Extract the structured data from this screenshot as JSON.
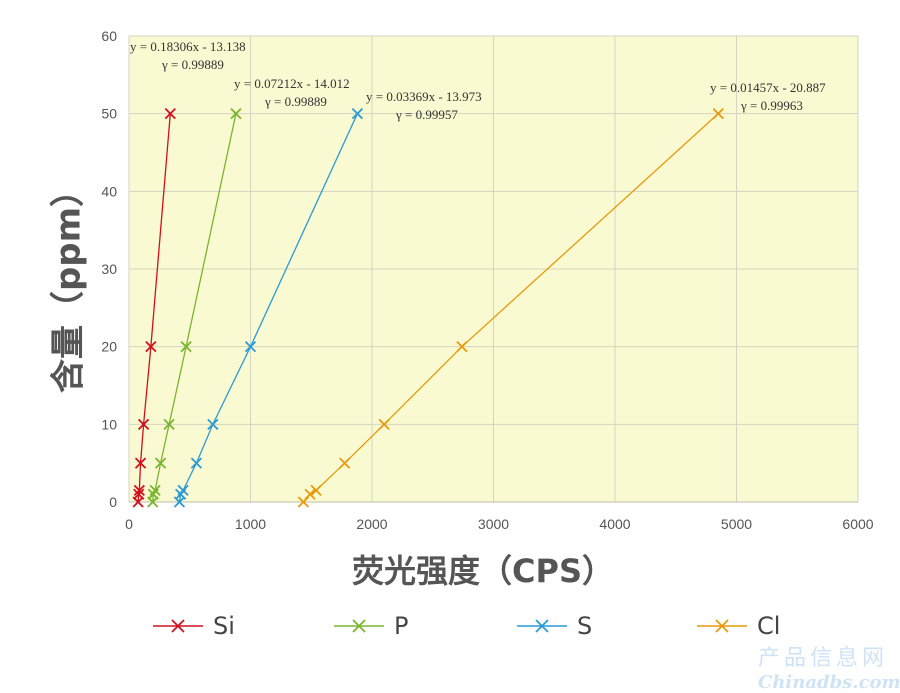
{
  "chart_data": {
    "type": "scatter",
    "xlabel": "荧光强度（CPS）",
    "ylabel": "含量（ppm）",
    "xlim": [
      0,
      6000
    ],
    "ylim": [
      0,
      60
    ],
    "xticks": [
      "0",
      "1000",
      "2000",
      "3000",
      "4000",
      "5000",
      "6000"
    ],
    "yticks": [
      "0",
      "10",
      "20",
      "30",
      "40",
      "50",
      "60"
    ],
    "grid": true,
    "legend_position": "bottom",
    "series": [
      {
        "name": "Si",
        "color": "#d0101e",
        "points": [
          [
            75,
            0
          ],
          [
            80,
            1
          ],
          [
            85,
            1.5
          ],
          [
            95,
            5
          ],
          [
            120,
            10
          ],
          [
            180,
            20
          ],
          [
            340,
            50
          ]
        ],
        "equation": "y = 0.18306x - 13.138",
        "r": "γ = 0.99889"
      },
      {
        "name": "P",
        "color": "#7ab52e",
        "points": [
          [
            195,
            0
          ],
          [
            200,
            1
          ],
          [
            215,
            1.5
          ],
          [
            260,
            5
          ],
          [
            330,
            10
          ],
          [
            470,
            20
          ],
          [
            880,
            50
          ]
        ],
        "equation": "y = 0.07212x - 14.012",
        "r": "γ = 0.99889"
      },
      {
        "name": "S",
        "color": "#2b9ad6",
        "points": [
          [
            415,
            0
          ],
          [
            425,
            1
          ],
          [
            445,
            1.5
          ],
          [
            555,
            5
          ],
          [
            690,
            10
          ],
          [
            1000,
            20
          ],
          [
            1880,
            50
          ]
        ],
        "equation": "y = 0.03369x - 13.973",
        "r": "γ = 0.99957"
      },
      {
        "name": "Cl",
        "color": "#e69a0c",
        "points": [
          [
            1435,
            0
          ],
          [
            1490,
            1
          ],
          [
            1540,
            1.5
          ],
          [
            1775,
            5
          ],
          [
            2100,
            10
          ],
          [
            2740,
            20
          ],
          [
            4850,
            50
          ]
        ],
        "equation": "y = 0.01457x - 20.887",
        "r": "γ = 0.99963"
      }
    ]
  },
  "watermark": {
    "line1": "产品信息网",
    "line2": "Chinadbs.com"
  }
}
